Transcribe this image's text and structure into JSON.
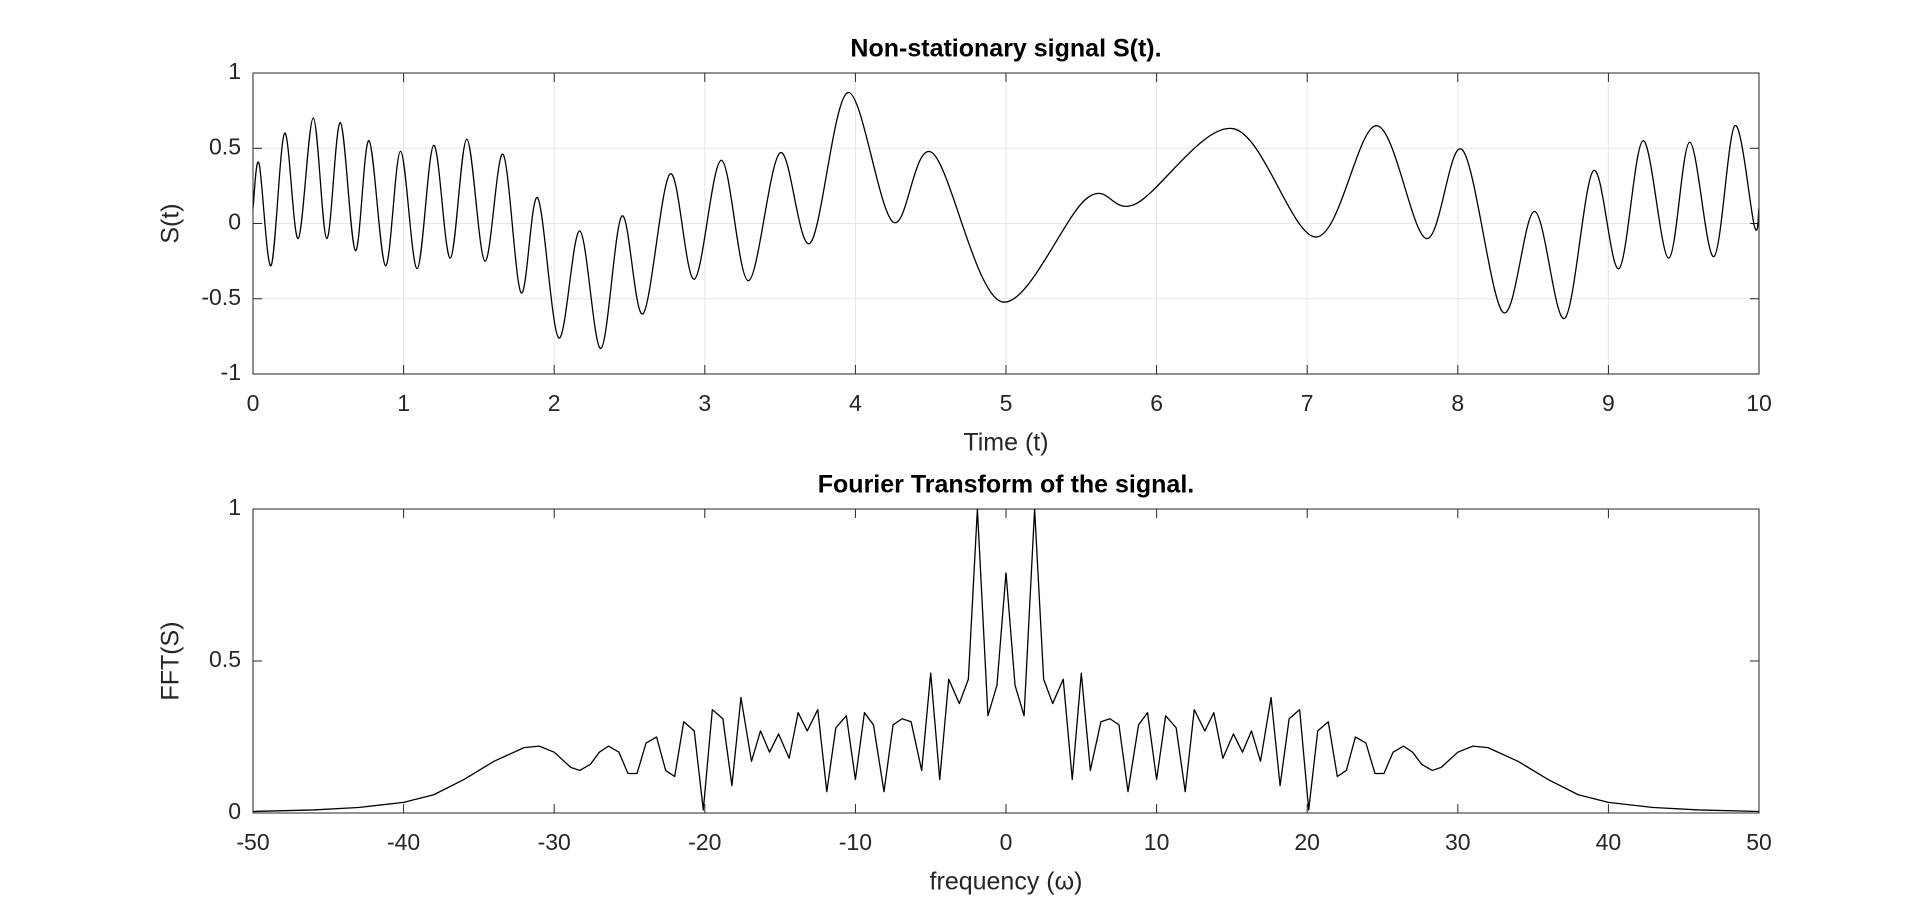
{
  "chart_data": [
    {
      "type": "line",
      "title": "Non-stationary signal S(t).",
      "x_label": "Time (t)",
      "y_label": "S(t)",
      "x": [
        0,
        0.04,
        0.12,
        0.21,
        0.3,
        0.4,
        0.49,
        0.58,
        0.68,
        0.77,
        0.88,
        0.98,
        1.09,
        1.2,
        1.31,
        1.42,
        1.54,
        1.66,
        1.78,
        1.89,
        2.03,
        2.17,
        2.31,
        2.45,
        2.59,
        2.77,
        2.93,
        3.11,
        3.29,
        3.5,
        3.7,
        3.95,
        4.25,
        4.51,
        4.97,
        5.54,
        5.86,
        6.51,
        7.06,
        7.46,
        7.79,
        8.03,
        8.3,
        8.51,
        8.71,
        8.9,
        9.07,
        9.23,
        9.4,
        9.54,
        9.7,
        9.84,
        9.97,
        10
      ],
      "values": [
        0.1,
        0.4,
        -0.28,
        0.6,
        -0.1,
        0.7,
        -0.1,
        0.67,
        -0.18,
        0.55,
        -0.28,
        0.48,
        -0.3,
        0.52,
        -0.23,
        0.56,
        -0.25,
        0.46,
        -0.46,
        0.17,
        -0.76,
        -0.05,
        -0.83,
        0.05,
        -0.6,
        0.33,
        -0.37,
        0.42,
        -0.38,
        0.47,
        -0.13,
        0.87,
        0.01,
        0.47,
        -0.52,
        0.17,
        0.13,
        0.63,
        -0.09,
        0.65,
        -0.1,
        0.49,
        -0.59,
        0.08,
        -0.63,
        0.35,
        -0.3,
        0.55,
        -0.23,
        0.54,
        -0.22,
        0.65,
        -0.02,
        0.1
      ],
      "color": "#000000",
      "smooth": true,
      "grid": true,
      "xlim": [
        0,
        10
      ],
      "xticks": [
        0,
        1,
        2,
        3,
        4,
        5,
        6,
        7,
        8,
        9,
        10
      ],
      "ylim": [
        -1,
        1
      ],
      "yticks": [
        -1,
        -0.5,
        0,
        0.5,
        1
      ]
    },
    {
      "type": "line",
      "title": "Fourier Transform of the signal.",
      "x_label": "frequency (ω)",
      "y_label": "FFT(S)",
      "x": [
        -50,
        -46,
        -43,
        -40,
        -38,
        -36,
        -34,
        -32,
        -31,
        -30,
        -28.9,
        -28.3,
        -27.6,
        -27.0,
        -26.4,
        -25.7,
        -25.1,
        -24.5,
        -23.9,
        -23.2,
        -22.6,
        -22.0,
        -21.4,
        -20.7,
        -20.1,
        -19.5,
        -18.8,
        -18.2,
        -17.6,
        -16.9,
        -16.3,
        -15.7,
        -15.1,
        -14.4,
        -13.8,
        -13.2,
        -12.5,
        -11.9,
        -11.3,
        -10.6,
        -10.0,
        -9.4,
        -8.8,
        -8.1,
        -7.5,
        -6.9,
        -6.3,
        -5.6,
        -5.0,
        -4.4,
        -3.8,
        -3.1,
        -2.5,
        -1.9,
        -1.2,
        -0.6,
        0,
        0.6,
        1.2,
        1.9,
        2.5,
        3.1,
        3.8,
        4.4,
        5.0,
        5.6,
        6.3,
        6.9,
        7.5,
        8.1,
        8.8,
        9.4,
        10.0,
        10.6,
        11.3,
        11.9,
        12.5,
        13.2,
        13.8,
        14.4,
        15.1,
        15.7,
        16.3,
        16.9,
        17.6,
        18.2,
        18.8,
        19.5,
        20.1,
        20.7,
        21.4,
        22.0,
        22.6,
        23.2,
        23.9,
        24.5,
        25.1,
        25.7,
        26.4,
        27.0,
        27.6,
        28.3,
        28.9,
        30,
        31,
        32,
        34,
        36,
        38,
        40,
        43,
        46,
        50
      ],
      "values": [
        0.005,
        0.01,
        0.018,
        0.035,
        0.06,
        0.11,
        0.17,
        0.215,
        0.22,
        0.2,
        0.15,
        0.14,
        0.16,
        0.2,
        0.22,
        0.2,
        0.13,
        0.13,
        0.23,
        0.25,
        0.14,
        0.12,
        0.3,
        0.27,
        0.01,
        0.34,
        0.31,
        0.09,
        0.38,
        0.17,
        0.27,
        0.2,
        0.26,
        0.18,
        0.33,
        0.27,
        0.34,
        0.07,
        0.28,
        0.32,
        0.11,
        0.33,
        0.29,
        0.07,
        0.29,
        0.31,
        0.3,
        0.14,
        0.46,
        0.11,
        0.44,
        0.36,
        0.44,
        1.0,
        0.32,
        0.42,
        0.79,
        0.42,
        0.32,
        1.0,
        0.44,
        0.36,
        0.44,
        0.11,
        0.46,
        0.14,
        0.3,
        0.31,
        0.29,
        0.07,
        0.29,
        0.33,
        0.11,
        0.32,
        0.28,
        0.07,
        0.34,
        0.27,
        0.33,
        0.18,
        0.26,
        0.2,
        0.27,
        0.17,
        0.38,
        0.09,
        0.31,
        0.34,
        0.01,
        0.27,
        0.3,
        0.12,
        0.14,
        0.25,
        0.23,
        0.13,
        0.13,
        0.2,
        0.22,
        0.2,
        0.16,
        0.14,
        0.15,
        0.2,
        0.22,
        0.215,
        0.17,
        0.11,
        0.06,
        0.035,
        0.018,
        0.01,
        0.005
      ],
      "color": "#000000",
      "smooth": false,
      "grid": false,
      "xlim": [
        -50,
        50
      ],
      "xticks": [
        -50,
        -40,
        -30,
        -20,
        -10,
        0,
        10,
        20,
        30,
        40,
        50
      ],
      "ylim": [
        0,
        1
      ],
      "yticks": [
        0,
        0.5,
        1
      ]
    }
  ]
}
